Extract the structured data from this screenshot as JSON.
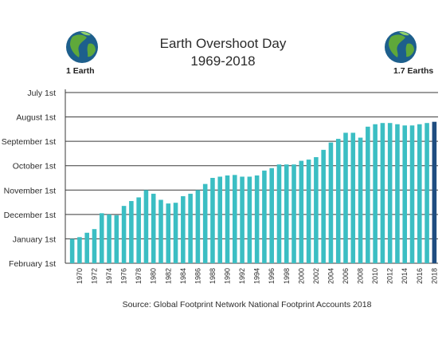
{
  "header": {
    "title_line1": "Earth Overshoot Day",
    "title_line2": "1969-2018",
    "left_globe_label": "1 Earth",
    "right_globe_label": "1.7 Earths"
  },
  "footer": {
    "source": "Source: Global Footprint Network National Footprint Accounts 2018"
  },
  "colors": {
    "bar": "#3bbec3",
    "bar_highlight": "#1f4d80",
    "grid": "#3a3a3a",
    "ocean": "#1d5f8c",
    "land": "#5fa83a"
  },
  "chart_data": {
    "type": "bar",
    "title": "Earth Overshoot Day 1969-2018",
    "ylabel": "",
    "xlabel": "",
    "y_ticks": [
      "July 1st",
      "August 1st",
      "September 1st",
      "October 1st",
      "November 1st",
      "December 1st",
      "January 1st",
      "February 1st"
    ],
    "y_axis_note": "bar height measured in months after February 1st",
    "ylim": [
      0,
      7
    ],
    "x_tick_labels": [
      "1970",
      "1972",
      "1974",
      "1976",
      "1978",
      "1980",
      "1982",
      "1984",
      "1986",
      "1988",
      "1990",
      "1992",
      "1994",
      "1996",
      "1998",
      "2000",
      "2002",
      "2004",
      "2006",
      "2008",
      "2010",
      "2012",
      "2014",
      "2016",
      "2018"
    ],
    "categories": [
      "1969",
      "1970",
      "1971",
      "1972",
      "1973",
      "1974",
      "1975",
      "1976",
      "1977",
      "1978",
      "1979",
      "1980",
      "1981",
      "1982",
      "1983",
      "1984",
      "1985",
      "1986",
      "1987",
      "1988",
      "1989",
      "1990",
      "1991",
      "1992",
      "1993",
      "1994",
      "1995",
      "1996",
      "1997",
      "1998",
      "1999",
      "2000",
      "2001",
      "2002",
      "2003",
      "2004",
      "2005",
      "2006",
      "2007",
      "2008",
      "2009",
      "2010",
      "2011",
      "2012",
      "2013",
      "2014",
      "2015",
      "2016",
      "2017",
      "2018"
    ],
    "values": [
      1.0,
      1.07,
      1.25,
      1.4,
      2.05,
      2.0,
      1.97,
      2.35,
      2.55,
      2.7,
      3.0,
      2.85,
      2.6,
      2.45,
      2.48,
      2.75,
      2.85,
      3.0,
      3.25,
      3.5,
      3.55,
      3.6,
      3.62,
      3.55,
      3.55,
      3.6,
      3.8,
      3.9,
      4.05,
      4.05,
      4.05,
      4.2,
      4.25,
      4.35,
      4.65,
      4.95,
      5.1,
      5.35,
      5.35,
      5.15,
      5.6,
      5.7,
      5.75,
      5.75,
      5.7,
      5.65,
      5.65,
      5.7,
      5.75,
      5.8
    ],
    "highlight_category": "2018",
    "grid": true
  }
}
